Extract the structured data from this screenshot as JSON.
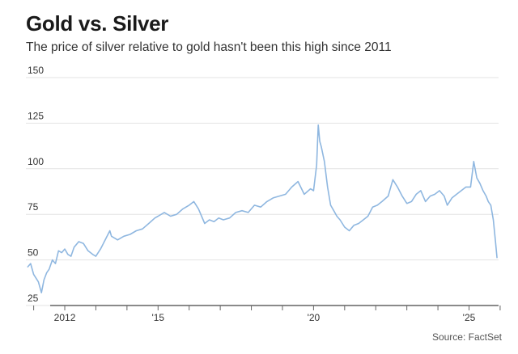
{
  "title": "Gold vs. Silver",
  "subtitle": "The price of silver relative to gold hasn't been this high since 2011",
  "source": "Source: FactSet",
  "colors": {
    "line": "#8fb7e0",
    "grid": "#e3e3e3",
    "axis": "#444444"
  },
  "chart_data": {
    "type": "line",
    "title": "Gold vs. Silver",
    "subtitle": "The price of silver relative to gold hasn't been this high since 2011",
    "xlabel": "",
    "ylabel": "",
    "ylim": [
      25,
      150
    ],
    "y_ticks": [
      25,
      50,
      75,
      100,
      125,
      150
    ],
    "xlim": [
      2010.75,
      2025.95
    ],
    "x_ticks": [
      2011,
      2012,
      2013,
      2014,
      2015,
      2016,
      2017,
      2018,
      2019,
      2020,
      2021,
      2022,
      2023,
      2024,
      2025,
      2026
    ],
    "x_tick_labels": [
      {
        "x": 2012,
        "label": "2012"
      },
      {
        "x": 2015,
        "label": "'15"
      },
      {
        "x": 2020,
        "label": "'20"
      },
      {
        "x": 2025,
        "label": "'25"
      }
    ],
    "grid": true,
    "legend": "none",
    "series": [
      {
        "x": [
          2010.8,
          2010.9,
          2011.0,
          2011.15,
          2011.25,
          2011.33,
          2011.42,
          2011.5,
          2011.6,
          2011.7,
          2011.8,
          2011.9,
          2012.0,
          2012.1,
          2012.2,
          2012.3,
          2012.45,
          2012.6,
          2012.75,
          2012.9,
          2013.0,
          2013.15,
          2013.3,
          2013.45,
          2013.5,
          2013.7,
          2013.9,
          2014.1,
          2014.3,
          2014.5,
          2014.7,
          2014.9,
          2015.0,
          2015.2,
          2015.4,
          2015.6,
          2015.8,
          2016.0,
          2016.15,
          2016.3,
          2016.5,
          2016.65,
          2016.8,
          2016.95,
          2017.1,
          2017.3,
          2017.5,
          2017.7,
          2017.9,
          2018.1,
          2018.3,
          2018.5,
          2018.7,
          2018.9,
          2019.1,
          2019.3,
          2019.5,
          2019.7,
          2019.9,
          2020.0,
          2020.1,
          2020.15,
          2020.2,
          2020.25,
          2020.3,
          2020.35,
          2020.45,
          2020.55,
          2020.65,
          2020.75,
          2020.85,
          2021.0,
          2021.15,
          2021.3,
          2021.45,
          2021.6,
          2021.75,
          2021.9,
          2022.05,
          2022.2,
          2022.4,
          2022.55,
          2022.7,
          2022.85,
          2023.0,
          2023.15,
          2023.3,
          2023.45,
          2023.6,
          2023.75,
          2023.9,
          2024.05,
          2024.2,
          2024.3,
          2024.45,
          2024.6,
          2024.75,
          2024.9,
          2025.05,
          2025.15,
          2025.25,
          2025.35,
          2025.45,
          2025.55,
          2025.62,
          2025.7,
          2025.78,
          2025.85,
          2025.9
        ],
        "values": [
          46,
          48,
          42,
          38,
          32,
          39,
          43,
          45,
          50,
          48,
          55,
          54,
          56,
          53,
          52,
          57,
          60,
          59,
          55,
          53,
          52,
          56,
          61,
          66,
          63,
          61,
          63,
          64,
          66,
          67,
          70,
          73,
          74,
          76,
          74,
          75,
          78,
          80,
          82,
          78,
          70,
          72,
          71,
          73,
          72,
          73,
          76,
          77,
          76,
          80,
          79,
          82,
          84,
          85,
          86,
          90,
          93,
          86,
          89,
          88,
          102,
          124,
          115,
          112,
          108,
          104,
          90,
          80,
          77,
          74,
          72,
          68,
          66,
          69,
          70,
          72,
          74,
          79,
          80,
          82,
          85,
          94,
          90,
          85,
          81,
          82,
          86,
          88,
          82,
          85,
          86,
          88,
          85,
          80,
          84,
          86,
          88,
          90,
          90,
          104,
          95,
          92,
          88,
          85,
          82,
          80,
          72,
          60,
          51
        ]
      }
    ]
  }
}
